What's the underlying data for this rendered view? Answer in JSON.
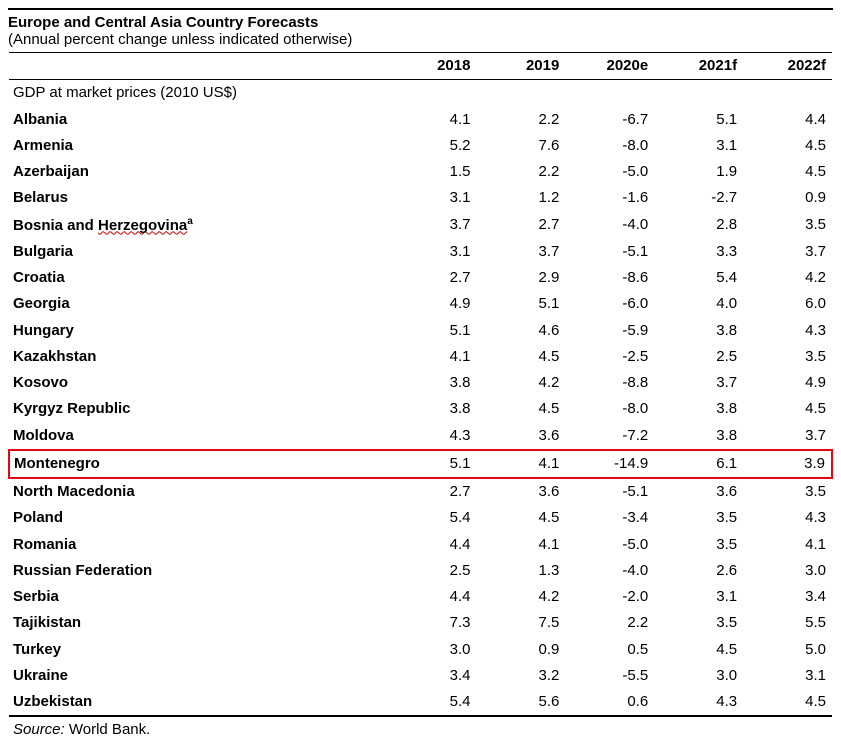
{
  "title": {
    "line1": "Europe and Central Asia Country Forecasts",
    "line2": "(Annual percent change unless indicated otherwise)"
  },
  "columns": [
    "2018",
    "2019",
    "2020e",
    "2021f",
    "2022f"
  ],
  "section_label": "GDP at market prices (2010 US$)",
  "rows": [
    {
      "name": "Albania",
      "wavy": false,
      "hl": false,
      "sup": "",
      "v": [
        "4.1",
        "2.2",
        "-6.7",
        "5.1",
        "4.4"
      ]
    },
    {
      "name": "Armenia",
      "wavy": false,
      "hl": false,
      "sup": "",
      "v": [
        "5.2",
        "7.6",
        "-8.0",
        "3.1",
        "4.5"
      ]
    },
    {
      "name": "Azerbaijan",
      "wavy": false,
      "hl": false,
      "sup": "",
      "v": [
        "1.5",
        "2.2",
        "-5.0",
        "1.9",
        "4.5"
      ]
    },
    {
      "name": "Belarus",
      "wavy": false,
      "hl": false,
      "sup": "",
      "v": [
        "3.1",
        "1.2",
        "-1.6",
        "-2.7",
        "0.9"
      ]
    },
    {
      "name_prefix": "Bosnia and ",
      "name_wavy": "Herzegovina",
      "wavy": true,
      "hl": false,
      "sup": "a",
      "v": [
        "3.7",
        "2.7",
        "-4.0",
        "2.8",
        "3.5"
      ]
    },
    {
      "name": "Bulgaria",
      "wavy": false,
      "hl": false,
      "sup": "",
      "v": [
        "3.1",
        "3.7",
        "-5.1",
        "3.3",
        "3.7"
      ]
    },
    {
      "name": "Croatia",
      "wavy": false,
      "hl": false,
      "sup": "",
      "v": [
        "2.7",
        "2.9",
        "-8.6",
        "5.4",
        "4.2"
      ]
    },
    {
      "name": "Georgia",
      "wavy": false,
      "hl": false,
      "sup": "",
      "v": [
        "4.9",
        "5.1",
        "-6.0",
        "4.0",
        "6.0"
      ]
    },
    {
      "name": "Hungary",
      "wavy": false,
      "hl": false,
      "sup": "",
      "v": [
        "5.1",
        "4.6",
        "-5.9",
        "3.8",
        "4.3"
      ]
    },
    {
      "name": "Kazakhstan",
      "wavy": false,
      "hl": false,
      "sup": "",
      "v": [
        "4.1",
        "4.5",
        "-2.5",
        "2.5",
        "3.5"
      ]
    },
    {
      "name": "Kosovo",
      "wavy": false,
      "hl": false,
      "sup": "",
      "v": [
        "3.8",
        "4.2",
        "-8.8",
        "3.7",
        "4.9"
      ]
    },
    {
      "name": "Kyrgyz Republic",
      "wavy": false,
      "hl": false,
      "sup": "",
      "v": [
        "3.8",
        "4.5",
        "-8.0",
        "3.8",
        "4.5"
      ]
    },
    {
      "name": "Moldova",
      "wavy": false,
      "hl": false,
      "sup": "",
      "v": [
        "4.3",
        "3.6",
        "-7.2",
        "3.8",
        "3.7"
      ]
    },
    {
      "name": "Montenegro",
      "wavy": false,
      "hl": true,
      "sup": "",
      "v": [
        "5.1",
        "4.1",
        "-14.9",
        "6.1",
        "3.9"
      ]
    },
    {
      "name": "North Macedonia",
      "wavy": false,
      "hl": false,
      "sup": "",
      "v": [
        "2.7",
        "3.6",
        "-5.1",
        "3.6",
        "3.5"
      ]
    },
    {
      "name": "Poland",
      "wavy": false,
      "hl": false,
      "sup": "",
      "v": [
        "5.4",
        "4.5",
        "-3.4",
        "3.5",
        "4.3"
      ]
    },
    {
      "name": "Romania",
      "wavy": false,
      "hl": false,
      "sup": "",
      "v": [
        "4.4",
        "4.1",
        "-5.0",
        "3.5",
        "4.1"
      ]
    },
    {
      "name": "Russian Federation",
      "wavy": false,
      "hl": false,
      "sup": "",
      "v": [
        "2.5",
        "1.3",
        "-4.0",
        "2.6",
        "3.0"
      ]
    },
    {
      "name": "Serbia",
      "wavy": false,
      "hl": false,
      "sup": "",
      "v": [
        "4.4",
        "4.2",
        "-2.0",
        "3.1",
        "3.4"
      ]
    },
    {
      "name": "Tajikistan",
      "wavy": false,
      "hl": false,
      "sup": "",
      "v": [
        "7.3",
        "7.5",
        "2.2",
        "3.5",
        "5.5"
      ]
    },
    {
      "name": "Turkey",
      "wavy": false,
      "hl": false,
      "sup": "",
      "v": [
        "3.0",
        "0.9",
        "0.5",
        "4.5",
        "5.0"
      ]
    },
    {
      "name": "Ukraine",
      "wavy": false,
      "hl": false,
      "sup": "",
      "v": [
        "3.4",
        "3.2",
        "-5.5",
        "3.0",
        "3.1"
      ]
    },
    {
      "name": "Uzbekistan",
      "wavy": false,
      "hl": false,
      "sup": "",
      "v": [
        "5.4",
        "5.6",
        "0.6",
        "4.3",
        "4.5"
      ]
    }
  ],
  "source": {
    "label": "Source:",
    "name": " World Bank."
  },
  "style": {
    "highlight_color": "#e30613",
    "border_color": "#000000",
    "bg_color": "#ffffff",
    "font_size_pt": 11
  }
}
